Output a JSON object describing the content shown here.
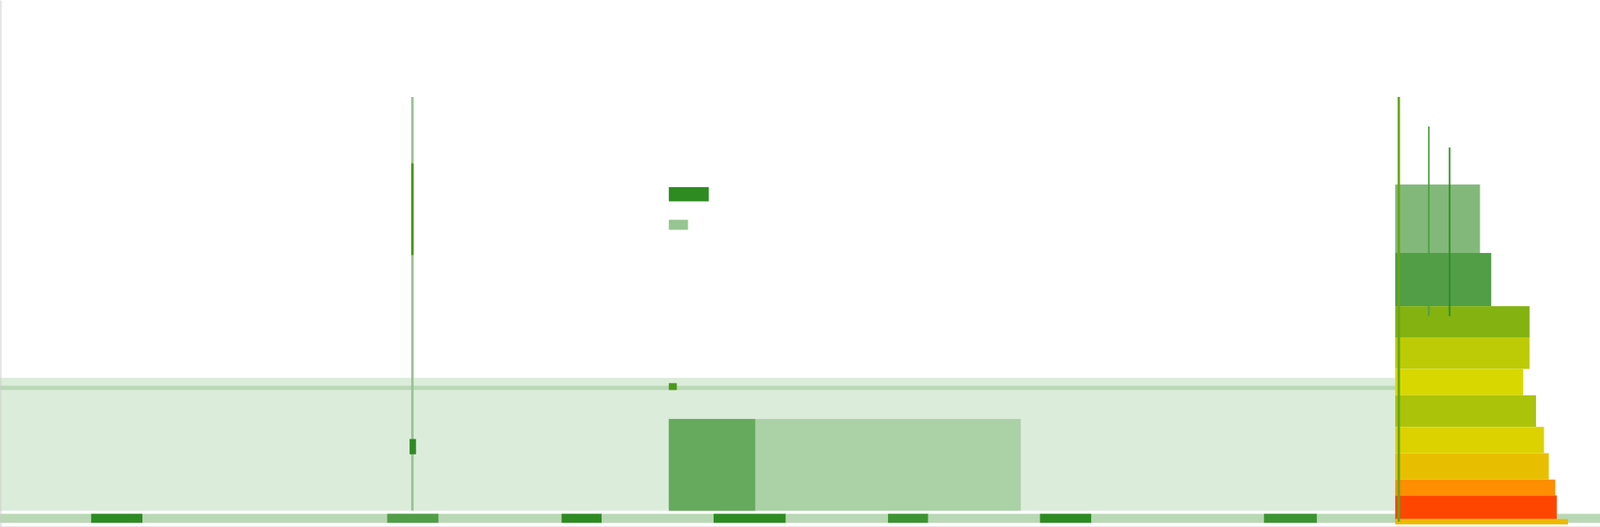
{
  "chart_data": {
    "type": "heatmap",
    "tick_labels": false,
    "grid": false,
    "xlim": [
      0,
      100
    ],
    "ylim": [
      0,
      100
    ],
    "zlim": [
      0,
      100
    ],
    "cells": [
      {
        "x0": 0,
        "x1": 87.2,
        "y0": 3.1,
        "y1": 28.3,
        "value": 5
      },
      {
        "x0": 41.8,
        "x1": 63.8,
        "y0": 3.1,
        "y1": 20.5,
        "value": 12
      },
      {
        "x0": 41.8,
        "x1": 47.2,
        "y0": 3.1,
        "y1": 20.5,
        "value": 22
      },
      {
        "x0": 0,
        "x1": 87.2,
        "y0": 26.0,
        "y1": 26.8,
        "value": 10
      },
      {
        "x0": 41.8,
        "x1": 42.3,
        "y0": 26.0,
        "y1": 27.3,
        "value": 35
      },
      {
        "x0": 0,
        "x1": 100,
        "y0": 0.8,
        "y1": 2.5,
        "value": 10
      },
      {
        "x0": 5.7,
        "x1": 8.9,
        "y0": 0.8,
        "y1": 2.5,
        "value": 30
      },
      {
        "x0": 24.2,
        "x1": 27.4,
        "y0": 0.8,
        "y1": 2.5,
        "value": 25
      },
      {
        "x0": 35.1,
        "x1": 37.6,
        "y0": 0.8,
        "y1": 2.5,
        "value": 30
      },
      {
        "x0": 44.6,
        "x1": 49.1,
        "y0": 0.8,
        "y1": 2.5,
        "value": 30
      },
      {
        "x0": 55.5,
        "x1": 58.0,
        "y0": 0.8,
        "y1": 2.5,
        "value": 28
      },
      {
        "x0": 65.0,
        "x1": 68.2,
        "y0": 0.8,
        "y1": 2.5,
        "value": 30
      },
      {
        "x0": 79.0,
        "x1": 82.3,
        "y0": 0.8,
        "y1": 2.5,
        "value": 28
      },
      {
        "x0": 25.7,
        "x1": 25.85,
        "y0": 3.1,
        "y1": 81.6,
        "value": 15
      },
      {
        "x0": 25.7,
        "x1": 25.85,
        "y0": 51.6,
        "y1": 69.0,
        "value": 35
      },
      {
        "x0": 25.6,
        "x1": 26.0,
        "y0": 13.8,
        "y1": 16.7,
        "value": 30
      },
      {
        "x0": 41.8,
        "x1": 44.3,
        "y0": 61.8,
        "y1": 64.5,
        "value": 30
      },
      {
        "x0": 41.8,
        "x1": 43.0,
        "y0": 56.4,
        "y1": 58.3,
        "value": 15
      },
      {
        "x0": 87.2,
        "x1": 92.5,
        "y0": 52.0,
        "y1": 65.0,
        "value": 18
      },
      {
        "x0": 87.2,
        "x1": 93.2,
        "y0": 41.9,
        "y1": 52.0,
        "value": 25
      },
      {
        "x0": 87.2,
        "x1": 95.6,
        "y0": 36.0,
        "y1": 41.9,
        "value": 45
      },
      {
        "x0": 87.2,
        "x1": 95.6,
        "y0": 30.0,
        "y1": 36.0,
        "value": 55
      },
      {
        "x0": 87.2,
        "x1": 95.2,
        "y0": 25.0,
        "y1": 30.0,
        "value": 60
      },
      {
        "x0": 87.2,
        "x1": 96.0,
        "y0": 19.0,
        "y1": 25.0,
        "value": 52
      },
      {
        "x0": 87.2,
        "x1": 96.5,
        "y0": 14.0,
        "y1": 19.0,
        "value": 62
      },
      {
        "x0": 87.2,
        "x1": 96.8,
        "y0": 9.0,
        "y1": 14.0,
        "value": 68
      },
      {
        "x0": 87.2,
        "x1": 97.2,
        "y0": 6.0,
        "y1": 9.0,
        "value": 82
      },
      {
        "x0": 87.2,
        "x1": 97.3,
        "y0": 1.5,
        "y1": 6.0,
        "value": 95
      },
      {
        "x0": 87.2,
        "x1": 98.0,
        "y0": 0.5,
        "y1": 1.5,
        "value": 70
      },
      {
        "x0": 87.35,
        "x1": 87.5,
        "y0": 1.0,
        "y1": 81.6,
        "value": 40
      },
      {
        "x0": 89.25,
        "x1": 89.35,
        "y0": 40.0,
        "y1": 76.0,
        "value": 25
      },
      {
        "x0": 90.55,
        "x1": 90.65,
        "y0": 40.0,
        "y1": 72.0,
        "value": 30
      }
    ]
  }
}
